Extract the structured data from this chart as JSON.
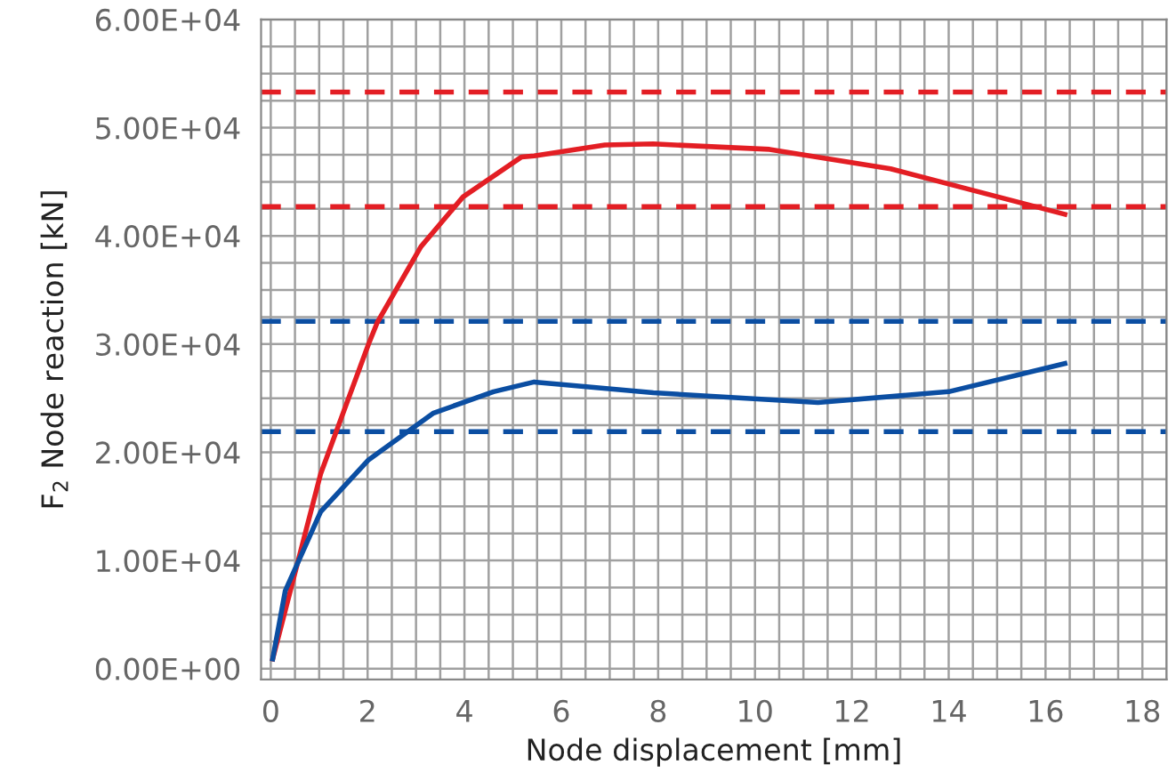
{
  "chart_data": {
    "type": "line",
    "xlabel": "Node displacement [mm]",
    "ylabel": "F$_{2}$ Node reaction [kN]",
    "xlim": [
      -0.2,
      18.5
    ],
    "xticks": [
      0,
      2,
      4,
      6,
      8,
      10,
      12,
      14,
      16,
      18
    ],
    "ylim": [
      -1000,
      60000
    ],
    "yticks": [
      {
        "value": 0,
        "label": "0.00E+00"
      },
      {
        "value": 10000,
        "label": "1.00E+04"
      },
      {
        "value": 20000,
        "label": "2.00E+04"
      },
      {
        "value": 30000,
        "label": "3.00E+04"
      },
      {
        "value": 40000,
        "label": "4.00E+04"
      },
      {
        "value": 50000,
        "label": "5.00E+04"
      },
      {
        "value": 60000,
        "label": "6.00E+04"
      }
    ],
    "grid": true,
    "marker": "none",
    "line_style": "solid",
    "series": [
      {
        "color": "#e31e24",
        "x": [
          0.04,
          1.03,
          2.02,
          2.2,
          3.1,
          3.97,
          5.18,
          5.44,
          6.9,
          7.9,
          10.3,
          12.8,
          14.6,
          16.4
        ],
        "values": [
          900,
          18000,
          30000,
          32000,
          39000,
          43600,
          47300,
          47400,
          48400,
          48500,
          48000,
          46200,
          44100,
          42000
        ]
      },
      {
        "color": "#0b4ea2",
        "x": [
          0.04,
          0.3,
          1.03,
          2.02,
          3.35,
          4.6,
          5.44,
          7.9,
          11.3,
          14.0,
          16.4
        ],
        "values": [
          900,
          7200,
          14500,
          19300,
          23600,
          25600,
          26500,
          25500,
          24600,
          25600,
          28200
        ]
      }
    ],
    "ref_lines": [
      {
        "axis": "y",
        "value": 53300,
        "color": "#e31e24",
        "line_style": "dashed"
      },
      {
        "axis": "y",
        "value": 42700,
        "color": "#e31e24",
        "line_style": "dashed"
      },
      {
        "axis": "y",
        "value": 32100,
        "color": "#0b4ea2",
        "line_style": "dashed"
      },
      {
        "axis": "y",
        "value": 21900,
        "color": "#0b4ea2",
        "line_style": "dashed"
      }
    ]
  }
}
